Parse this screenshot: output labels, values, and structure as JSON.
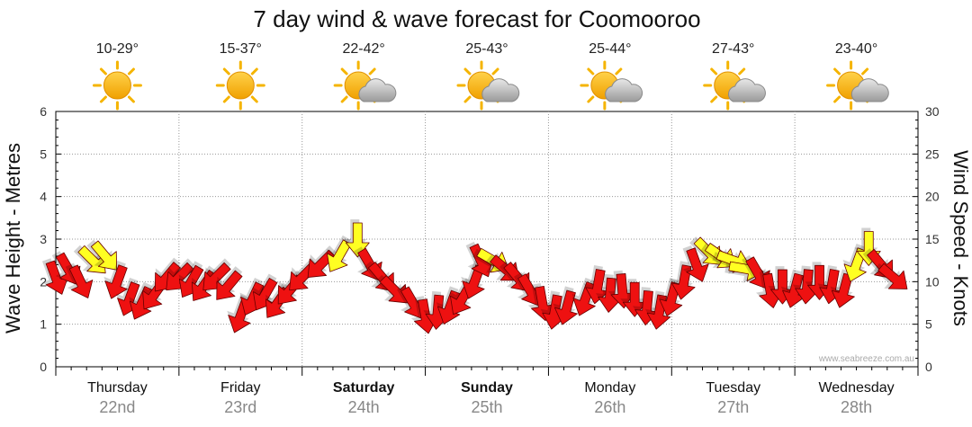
{
  "chart_data": {
    "type": "line",
    "title": "7 day wind & wave forecast for Coomooroo",
    "ylabel_left": "Wave Height - Metres",
    "ylabel_right": "Wind Speed - Knots",
    "ylim_left": [
      0,
      6
    ],
    "ylim_right": [
      0,
      30
    ],
    "yticks_left": [
      "0",
      "1",
      "2",
      "3",
      "4",
      "5",
      "6"
    ],
    "yticks_right": [
      "0",
      "5",
      "10",
      "15",
      "20",
      "25",
      "30"
    ],
    "days": [
      {
        "name": "Thursday",
        "date": "22nd",
        "bold": false,
        "temp": "10-29°",
        "weather": "sunny"
      },
      {
        "name": "Friday",
        "date": "23rd",
        "bold": false,
        "temp": "15-37°",
        "weather": "sunny"
      },
      {
        "name": "Saturday",
        "date": "24th",
        "bold": true,
        "temp": "22-42°",
        "weather": "partly-cloudy"
      },
      {
        "name": "Sunday",
        "date": "25th",
        "bold": true,
        "temp": "25-43°",
        "weather": "partly-cloudy"
      },
      {
        "name": "Monday",
        "date": "26th",
        "bold": false,
        "temp": "25-44°",
        "weather": "partly-cloudy"
      },
      {
        "name": "Tuesday",
        "date": "27th",
        "bold": false,
        "temp": "27-43°",
        "weather": "partly-cloudy"
      },
      {
        "name": "Wednesday",
        "date": "28th",
        "bold": false,
        "temp": "23-40°",
        "weather": "partly-cloudy"
      }
    ],
    "wind_series": {
      "name": "Wind Speed (knots)",
      "legend_colors": {
        "strong": "#ee1111",
        "light": "#ffff22"
      },
      "points": [
        {
          "t": 0.0,
          "knots": 10.5,
          "dir": 160,
          "color": "red"
        },
        {
          "t": 0.1,
          "knots": 11.5,
          "dir": 150,
          "color": "red"
        },
        {
          "t": 0.2,
          "knots": 10.0,
          "dir": 155,
          "color": "red"
        },
        {
          "t": 0.3,
          "knots": 12.5,
          "dir": 135,
          "color": "yellow"
        },
        {
          "t": 0.4,
          "knots": 13.0,
          "dir": 140,
          "color": "yellow"
        },
        {
          "t": 0.5,
          "knots": 10.0,
          "dir": 200,
          "color": "red"
        },
        {
          "t": 0.6,
          "knots": 8.0,
          "dir": 200,
          "color": "red"
        },
        {
          "t": 0.7,
          "knots": 7.5,
          "dir": 205,
          "color": "red"
        },
        {
          "t": 0.8,
          "knots": 8.5,
          "dir": 215,
          "color": "red"
        },
        {
          "t": 0.9,
          "knots": 10.5,
          "dir": 220,
          "color": "red"
        },
        {
          "t": 1.0,
          "knots": 10.5,
          "dir": 225,
          "color": "red"
        },
        {
          "t": 1.1,
          "knots": 10.0,
          "dir": 210,
          "color": "red"
        },
        {
          "t": 1.2,
          "knots": 9.5,
          "dir": 215,
          "color": "red"
        },
        {
          "t": 1.3,
          "knots": 10.5,
          "dir": 225,
          "color": "red"
        },
        {
          "t": 1.4,
          "knots": 9.5,
          "dir": 220,
          "color": "red"
        },
        {
          "t": 1.5,
          "knots": 6.0,
          "dir": 200,
          "color": "red"
        },
        {
          "t": 1.6,
          "knots": 8.0,
          "dir": 205,
          "color": "red"
        },
        {
          "t": 1.7,
          "knots": 8.5,
          "dir": 210,
          "color": "red"
        },
        {
          "t": 1.8,
          "knots": 7.5,
          "dir": 215,
          "color": "red"
        },
        {
          "t": 1.9,
          "knots": 9.0,
          "dir": 220,
          "color": "red"
        },
        {
          "t": 2.0,
          "knots": 10.5,
          "dir": 225,
          "color": "red"
        },
        {
          "t": 2.15,
          "knots": 12.0,
          "dir": 225,
          "color": "red"
        },
        {
          "t": 2.3,
          "knots": 13.0,
          "dir": 210,
          "color": "yellow"
        },
        {
          "t": 2.45,
          "knots": 15.0,
          "dir": 180,
          "color": "yellow"
        },
        {
          "t": 2.55,
          "knots": 12.0,
          "dir": 150,
          "color": "red"
        },
        {
          "t": 2.65,
          "knots": 10.5,
          "dir": 140,
          "color": "red"
        },
        {
          "t": 2.75,
          "knots": 9.0,
          "dir": 135,
          "color": "red"
        },
        {
          "t": 2.9,
          "knots": 7.5,
          "dir": 150,
          "color": "red"
        },
        {
          "t": 3.0,
          "knots": 6.0,
          "dir": 170,
          "color": "red"
        },
        {
          "t": 3.1,
          "knots": 6.5,
          "dir": 185,
          "color": "red"
        },
        {
          "t": 3.2,
          "knots": 7.0,
          "dir": 200,
          "color": "red"
        },
        {
          "t": 3.3,
          "knots": 8.0,
          "dir": 210,
          "color": "red"
        },
        {
          "t": 3.4,
          "knots": 10.0,
          "dir": 200,
          "color": "red"
        },
        {
          "t": 3.45,
          "knots": 12.5,
          "dir": 155,
          "color": "red"
        },
        {
          "t": 3.55,
          "knots": 12.5,
          "dir": 120,
          "color": "yellow"
        },
        {
          "t": 3.65,
          "knots": 11.5,
          "dir": 130,
          "color": "red"
        },
        {
          "t": 3.75,
          "knots": 10.5,
          "dir": 140,
          "color": "red"
        },
        {
          "t": 3.85,
          "knots": 9.0,
          "dir": 150,
          "color": "red"
        },
        {
          "t": 3.95,
          "knots": 7.5,
          "dir": 170,
          "color": "red"
        },
        {
          "t": 4.05,
          "knots": 6.5,
          "dir": 190,
          "color": "red"
        },
        {
          "t": 4.15,
          "knots": 7.0,
          "dir": 195,
          "color": "red"
        },
        {
          "t": 4.3,
          "knots": 8.0,
          "dir": 200,
          "color": "red"
        },
        {
          "t": 4.4,
          "knots": 9.5,
          "dir": 190,
          "color": "red"
        },
        {
          "t": 4.5,
          "knots": 8.5,
          "dir": 185,
          "color": "red"
        },
        {
          "t": 4.6,
          "knots": 9.0,
          "dir": 175,
          "color": "red"
        },
        {
          "t": 4.7,
          "knots": 8.0,
          "dir": 180,
          "color": "red"
        },
        {
          "t": 4.8,
          "knots": 7.0,
          "dir": 185,
          "color": "red"
        },
        {
          "t": 4.9,
          "knots": 6.5,
          "dir": 190,
          "color": "red"
        },
        {
          "t": 5.0,
          "knots": 8.0,
          "dir": 195,
          "color": "red"
        },
        {
          "t": 5.1,
          "knots": 10.0,
          "dir": 190,
          "color": "red"
        },
        {
          "t": 5.2,
          "knots": 12.0,
          "dir": 160,
          "color": "red"
        },
        {
          "t": 5.3,
          "knots": 13.5,
          "dir": 135,
          "color": "yellow"
        },
        {
          "t": 5.4,
          "knots": 13.0,
          "dir": 125,
          "color": "yellow"
        },
        {
          "t": 5.5,
          "knots": 12.5,
          "dir": 110,
          "color": "yellow"
        },
        {
          "t": 5.6,
          "knots": 11.5,
          "dir": 100,
          "color": "yellow"
        },
        {
          "t": 5.7,
          "knots": 11.0,
          "dir": 150,
          "color": "red"
        },
        {
          "t": 5.8,
          "knots": 9.0,
          "dir": 170,
          "color": "red"
        },
        {
          "t": 5.9,
          "knots": 9.5,
          "dir": 180,
          "color": "red"
        },
        {
          "t": 6.0,
          "knots": 9.0,
          "dir": 195,
          "color": "red"
        },
        {
          "t": 6.1,
          "knots": 9.5,
          "dir": 185,
          "color": "red"
        },
        {
          "t": 6.2,
          "knots": 10.0,
          "dir": 180,
          "color": "red"
        },
        {
          "t": 6.3,
          "knots": 9.5,
          "dir": 190,
          "color": "red"
        },
        {
          "t": 6.4,
          "knots": 9.0,
          "dir": 195,
          "color": "red"
        },
        {
          "t": 6.5,
          "knots": 12.0,
          "dir": 200,
          "color": "yellow"
        },
        {
          "t": 6.6,
          "knots": 14.0,
          "dir": 180,
          "color": "yellow"
        },
        {
          "t": 6.7,
          "knots": 12.0,
          "dir": 140,
          "color": "red"
        },
        {
          "t": 6.8,
          "knots": 10.5,
          "dir": 130,
          "color": "red"
        }
      ]
    },
    "watermark": "www.seabreeze.com.au"
  }
}
